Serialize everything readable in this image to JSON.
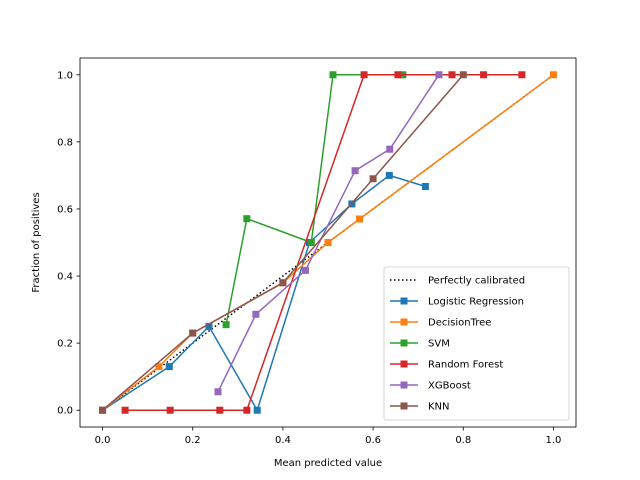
{
  "chart_data": {
    "type": "line",
    "title": "",
    "xlabel": "Mean predicted value",
    "ylabel": "Fraction of positives",
    "xlim": [
      -0.05,
      1.05
    ],
    "ylim": [
      -0.05,
      1.05
    ],
    "xticks": [
      "0.0",
      "0.2",
      "0.4",
      "0.6",
      "0.8",
      "1.0"
    ],
    "yticks": [
      "0.0",
      "0.2",
      "0.4",
      "0.6",
      "0.8",
      "1.0"
    ],
    "grid": false,
    "legend_position": "lower-right",
    "series": [
      {
        "name": "Perfectly calibrated",
        "color": "#000000",
        "style": "dotted",
        "marker": "none",
        "points": [
          [
            0,
            0
          ],
          [
            1,
            1
          ]
        ]
      },
      {
        "name": "Logistic Regression",
        "color": "#1f77b4",
        "style": "solid",
        "marker": "square",
        "points": [
          [
            0.0,
            0.0
          ],
          [
            0.148,
            0.13
          ],
          [
            0.236,
            0.25
          ],
          [
            0.343,
            0.0
          ],
          [
            0.459,
            0.5
          ],
          [
            0.553,
            0.615
          ],
          [
            0.636,
            0.7
          ],
          [
            0.716,
            0.667
          ]
        ]
      },
      {
        "name": "DecisionTree",
        "color": "#ff7f0e",
        "style": "solid",
        "marker": "square",
        "points": [
          [
            0.0,
            0.0
          ],
          [
            0.125,
            0.13
          ],
          [
            0.2,
            0.23
          ],
          [
            0.4,
            0.38
          ],
          [
            0.5,
            0.5
          ],
          [
            0.57,
            0.57
          ],
          [
            1.0,
            1.0
          ]
        ]
      },
      {
        "name": "SVM",
        "color": "#2ca02c",
        "style": "solid",
        "marker": "square",
        "points": [
          [
            0.274,
            0.255
          ],
          [
            0.32,
            0.571
          ],
          [
            0.463,
            0.5
          ],
          [
            0.511,
            1.0
          ],
          [
            0.666,
            1.0
          ]
        ]
      },
      {
        "name": "Random Forest",
        "color": "#d62728",
        "style": "solid",
        "marker": "square",
        "points": [
          [
            0.05,
            0.0
          ],
          [
            0.15,
            0.0
          ],
          [
            0.26,
            0.0
          ],
          [
            0.32,
            0.0
          ],
          [
            0.58,
            1.0
          ],
          [
            0.655,
            1.0
          ],
          [
            0.775,
            1.0
          ],
          [
            0.845,
            1.0
          ],
          [
            0.93,
            1.0
          ]
        ]
      },
      {
        "name": "XGBoost",
        "color": "#9467bd",
        "style": "solid",
        "marker": "square",
        "points": [
          [
            0.256,
            0.055
          ],
          [
            0.34,
            0.286
          ],
          [
            0.45,
            0.417
          ],
          [
            0.56,
            0.714
          ],
          [
            0.637,
            0.778
          ],
          [
            0.746,
            1.0
          ]
        ]
      },
      {
        "name": "KNN",
        "color": "#8c564b",
        "style": "solid",
        "marker": "square",
        "points": [
          [
            0.0,
            0.0
          ],
          [
            0.2,
            0.23
          ],
          [
            0.4,
            0.38
          ],
          [
            0.6,
            0.69
          ],
          [
            0.8,
            1.0
          ]
        ]
      }
    ]
  }
}
